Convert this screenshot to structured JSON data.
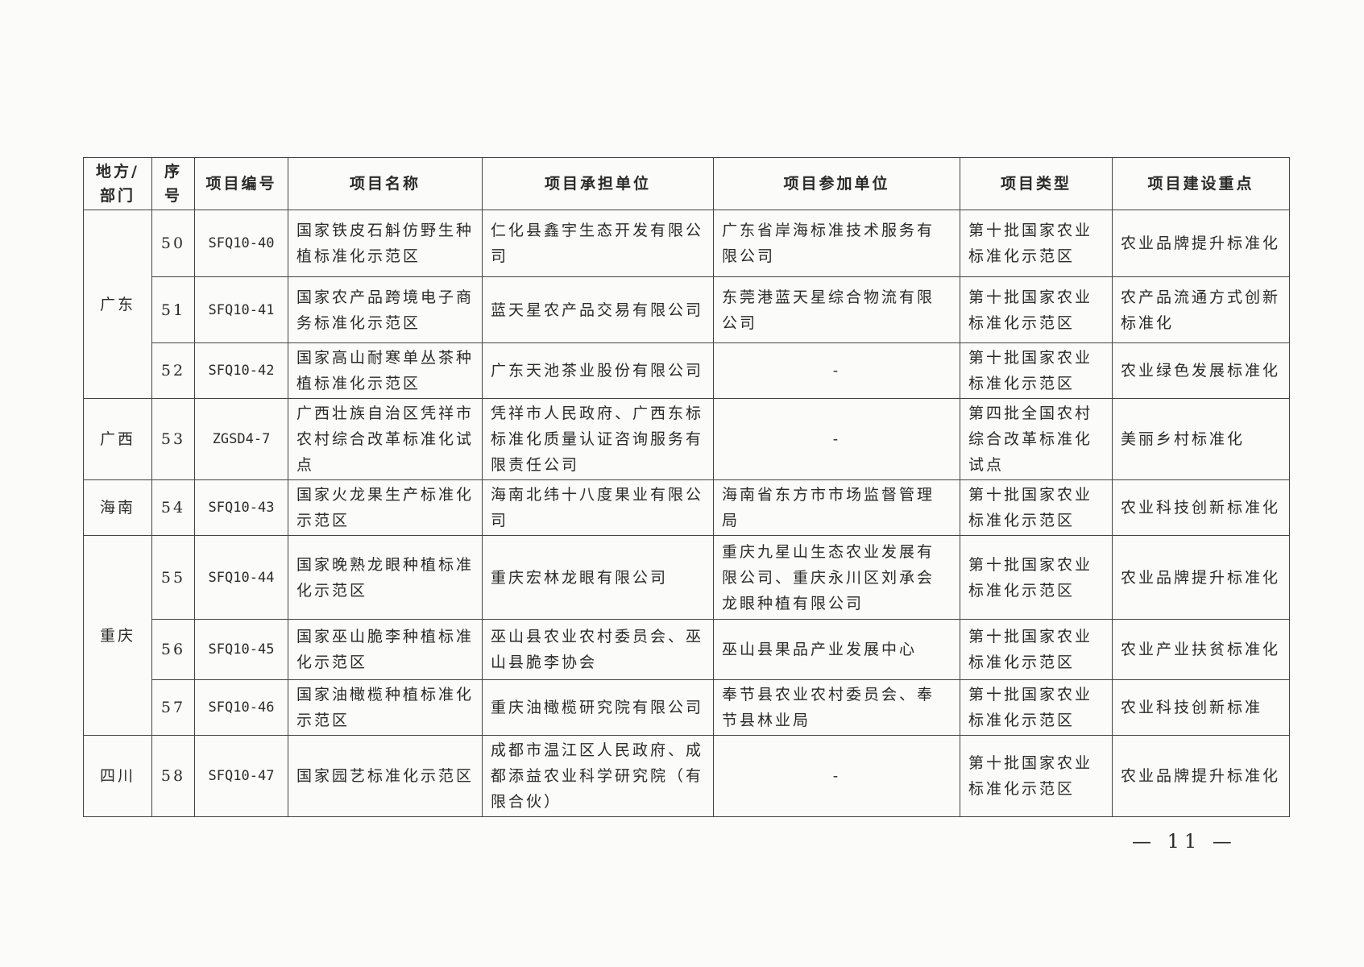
{
  "headers": [
    "地方/部门",
    "序号",
    "项目编号",
    "项目名称",
    "项目承担单位",
    "项目参加单位",
    "项目类型",
    "项目建设重点"
  ],
  "regions": [
    {
      "name": "广东",
      "rows": [
        {
          "no": "50",
          "code": "SFQ10-40",
          "name": "国家铁皮石斛仿野生种植标准化示范区",
          "lead": "仁化县鑫宇生态开发有限公司",
          "partner": "广东省岸海标准技术服务有限公司",
          "type": "第十批国家农业标准化示范区",
          "focus": "农业品牌提升标准化"
        },
        {
          "no": "51",
          "code": "SFQ10-41",
          "name": "国家农产品跨境电子商务标准化示范区",
          "lead": "蓝天星农产品交易有限公司",
          "partner": "东莞港蓝天星综合物流有限公司",
          "type": "第十批国家农业标准化示范区",
          "focus": "农产品流通方式创新标准化"
        },
        {
          "no": "52",
          "code": "SFQ10-42",
          "name": "国家高山耐寒单丛茶种植标准化示范区",
          "lead": "广东天池茶业股份有限公司",
          "partner": "-",
          "type": "第十批国家农业标准化示范区",
          "focus": "农业绿色发展标准化"
        }
      ]
    },
    {
      "name": "广西",
      "rows": [
        {
          "no": "53",
          "code": "ZGSD4-7",
          "name": "广西壮族自治区凭祥市农村综合改革标准化试点",
          "lead": "凭祥市人民政府、广西东标标准化质量认证咨询服务有限责任公司",
          "partner": "-",
          "type": "第四批全国农村综合改革标准化试点",
          "focus": "美丽乡村标准化"
        }
      ]
    },
    {
      "name": "海南",
      "rows": [
        {
          "no": "54",
          "code": "SFQ10-43",
          "name": "国家火龙果生产标准化示范区",
          "lead": "海南北纬十八度果业有限公司",
          "partner": "海南省东方市市场监督管理局",
          "type": "第十批国家农业标准化示范区",
          "focus": "农业科技创新标准化"
        }
      ]
    },
    {
      "name": "重庆",
      "rows": [
        {
          "no": "55",
          "code": "SFQ10-44",
          "name": "国家晚熟龙眼种植标准化示范区",
          "lead": "重庆宏林龙眼有限公司",
          "partner": "重庆九星山生态农业发展有限公司、重庆永川区刘承会龙眼种植有限公司",
          "type": "第十批国家农业标准化示范区",
          "focus": "农业品牌提升标准化"
        },
        {
          "no": "56",
          "code": "SFQ10-45",
          "name": "国家巫山脆李种植标准化示范区",
          "lead": "巫山县农业农村委员会、巫山县脆李协会",
          "partner": "巫山县果品产业发展中心",
          "type": "第十批国家农业标准化示范区",
          "focus": "农业产业扶贫标准化"
        },
        {
          "no": "57",
          "code": "SFQ10-46",
          "name": "国家油橄榄种植标准化示范区",
          "lead": "重庆油橄榄研究院有限公司",
          "partner": "奉节县农业农村委员会、奉节县林业局",
          "type": "第十批国家农业标准化示范区",
          "focus": "农业科技创新标准"
        }
      ]
    },
    {
      "name": "四川",
      "rows": [
        {
          "no": "58",
          "code": "SFQ10-47",
          "name": "国家园艺标准化示范区",
          "lead": "成都市温江区人民政府、成都添益农业科学研究院（有限合伙）",
          "partner": "-",
          "type": "第十批国家农业标准化示范区",
          "focus": "农业品牌提升标准化"
        }
      ]
    }
  ],
  "page_number": "— 11 —"
}
